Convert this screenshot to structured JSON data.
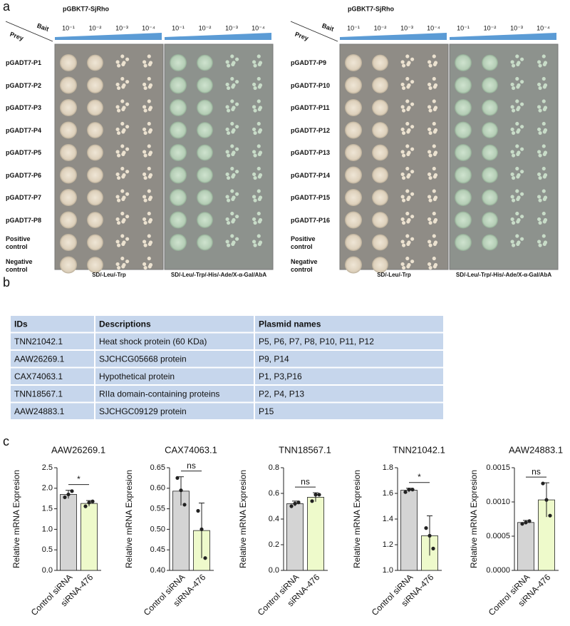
{
  "panel_labels": [
    "a",
    "b",
    "c"
  ],
  "screening": [
    {
      "construct": "pGBKT7-SjRho",
      "bait": "Bait",
      "prey": "Prey",
      "dilutions": [
        "10⁻¹",
        "10⁻²",
        "10⁻³",
        "10⁻⁴"
      ],
      "rows": [
        "pGADT7-P1",
        "pGADT7-P2",
        "pGADT7-P3",
        "pGADT7-P4",
        "pGADT7-P5",
        "pGADT7-P6",
        "pGADT7-P7",
        "pGADT7-P8",
        "Positive control",
        "Negative control"
      ],
      "media": [
        "SD/-Leu/-Trp",
        "SD/-Leu/-Trp/-His/-Ade/X-α-Gal/AbA"
      ]
    },
    {
      "construct": "pGBKT7-SjRho",
      "bait": "Bait",
      "prey": "Prey",
      "dilutions": [
        "10⁻¹",
        "10⁻²",
        "10⁻³",
        "10⁻⁴"
      ],
      "rows": [
        "pGADT7-P9",
        "pGADT7-P10",
        "pGADT7-P11",
        "pGADT7-P12",
        "pGADT7-P13",
        "pGADT7-P14",
        "pGADT7-P15",
        "pGADT7-P16",
        "Positive control",
        "Negative control"
      ],
      "media": [
        "SD/-Leu/-Trp",
        "SD/-Leu/-Trp/-His/-Ade/X-α-Gal/AbA"
      ]
    }
  ],
  "table": {
    "header": [
      "IDs",
      "Descriptions",
      "Plasmid names"
    ],
    "rows": [
      [
        "TNN21042.1",
        "Heat shock protein (60 KDa)",
        "P5, P6, P7, P8, P10, P11, P12"
      ],
      [
        "AAW26269.1",
        "SJCHCG05668 protein",
        "P9, P14"
      ],
      [
        "CAX74063.1",
        "Hypothetical protein",
        "P1, P3,P16"
      ],
      [
        "TNN18567.1",
        "RIIa domain-containing proteins",
        "P2, P4, P13"
      ],
      [
        "AAW24883.1",
        "SJCHGC09129 protein",
        "P15"
      ]
    ]
  },
  "chart_data": [
    {
      "type": "bar",
      "title": "AAW26269.1",
      "y_label": "Relative mRNA Expresion",
      "categories": [
        "Control siRNA",
        "siRNA-476"
      ],
      "values": [
        1.85,
        1.63
      ],
      "errors": [
        0.1,
        0.07
      ],
      "points": [
        [
          1.78,
          1.85,
          1.93
        ],
        [
          1.56,
          1.65,
          1.68
        ]
      ],
      "colors": [
        "#d4d4d4",
        "#eefacb"
      ],
      "significance": "*",
      "ylim": [
        0,
        2.5
      ],
      "yticks": [
        {
          "value": 0,
          "label": "0.0"
        },
        {
          "value": 0.5,
          "label": "0.5"
        },
        {
          "value": 1,
          "label": "1.0"
        },
        {
          "value": 1.5,
          "label": "1.5"
        },
        {
          "value": 2,
          "label": "2.0"
        },
        {
          "value": 2.5,
          "label": "2.5"
        }
      ]
    },
    {
      "type": "bar",
      "title": "CAX74063.1",
      "y_label": "Relative mRNA Expresion",
      "categories": [
        "Control siRNA",
        "siRNA-476"
      ],
      "values": [
        0.593,
        0.497
      ],
      "errors": [
        0.035,
        0.067
      ],
      "points": [
        [
          0.625,
          0.595,
          0.56
        ],
        [
          0.545,
          0.5,
          0.43
        ]
      ],
      "colors": [
        "#d4d4d4",
        "#eefacb"
      ],
      "significance": "ns",
      "ylim": [
        0.4,
        0.65
      ],
      "yticks": [
        {
          "value": 0.4,
          "label": "0.40"
        },
        {
          "value": 0.45,
          "label": "0.45"
        },
        {
          "value": 0.5,
          "label": "0.50"
        },
        {
          "value": 0.55,
          "label": "0.55"
        },
        {
          "value": 0.6,
          "label": "0.60"
        },
        {
          "value": 0.65,
          "label": "0.65"
        }
      ]
    },
    {
      "type": "bar",
      "title": "TNN18567.1",
      "y_label": "Relative mRNA Expresion",
      "categories": [
        "Control siRNA",
        "siRNA-476"
      ],
      "values": [
        0.52,
        0.57
      ],
      "errors": [
        0.02,
        0.035
      ],
      "points": [
        [
          0.5,
          0.52,
          0.53
        ],
        [
          0.54,
          0.59,
          0.59
        ]
      ],
      "colors": [
        "#d4d4d4",
        "#eefacb"
      ],
      "significance": "ns",
      "ylim": [
        0,
        0.8
      ],
      "yticks": [
        {
          "value": 0,
          "label": "0.0"
        },
        0.2,
        0.4,
        0.6,
        0.8
      ]
    },
    {
      "type": "bar",
      "title": "TNN21042.1",
      "y_label": "Relative mRNA Expresion",
      "categories": [
        "Control siRNA",
        "siRNA-476"
      ],
      "values": [
        1.625,
        1.27
      ],
      "errors": [
        0.015,
        0.155
      ],
      "points": [
        [
          1.61,
          1.63,
          1.63
        ],
        [
          1.33,
          1.27,
          1.17
        ]
      ],
      "colors": [
        "#d4d4d4",
        "#eefacb"
      ],
      "significance": "*",
      "ylim": [
        1,
        1.8
      ],
      "yticks": [
        {
          "value": 1,
          "label": "1.0"
        },
        1.2,
        1.4,
        1.6,
        1.8
      ]
    },
    {
      "type": "bar",
      "title": "AAW24883.1",
      "y_label": "Relative mRNA Expresion",
      "categories": [
        "Control siRNA",
        "siRNA-476"
      ],
      "values": [
        0.0007,
        0.00103
      ],
      "errors": [
        3e-05,
        0.00025
      ],
      "points": [
        [
          0.00068,
          0.0007,
          0.00072
        ],
        [
          0.00127,
          0.00103,
          0.0008
        ]
      ],
      "colors": [
        "#d4d4d4",
        "#eefacb"
      ],
      "significance": "ns",
      "ylim": [
        0,
        0.0015
      ],
      "yticks": [
        {
          "value": 0,
          "label": "0.0000"
        },
        {
          "value": 0.0005,
          "label": "0.0005"
        },
        {
          "value": 0.001,
          "label": "0.0010"
        },
        {
          "value": 0.0015,
          "label": "0.0015"
        }
      ]
    }
  ]
}
